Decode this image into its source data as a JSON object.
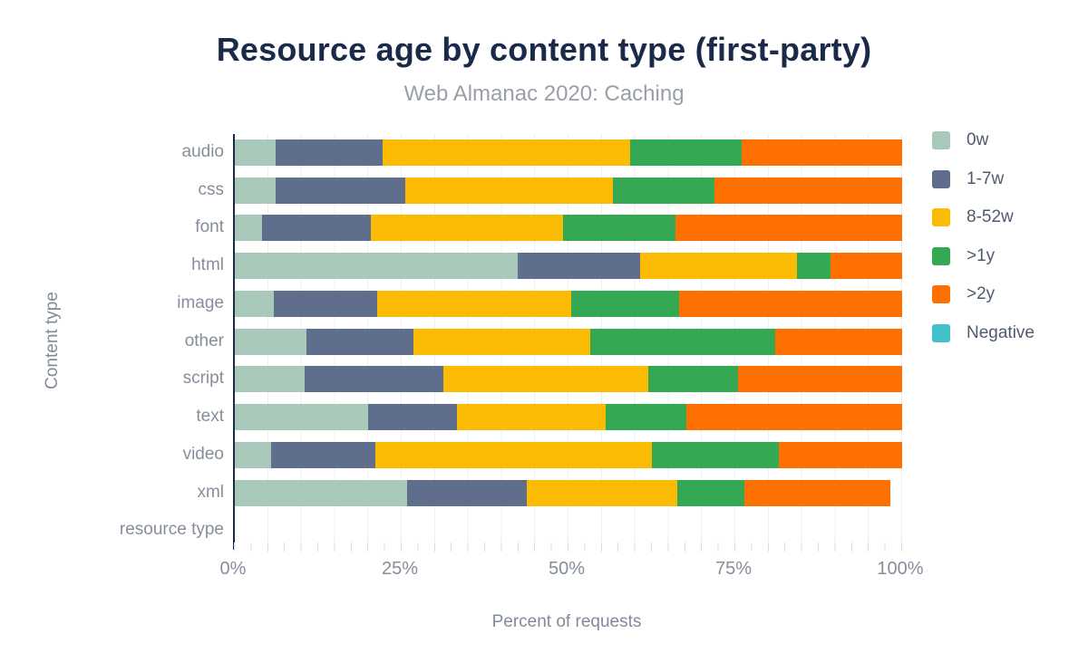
{
  "header": {
    "title": "Resource age by content type (first-party)",
    "subtitle": "Web Almanac 2020: Caching"
  },
  "colors": {
    "title": "#1b2a49",
    "subtitle": "#9aa0a6",
    "axis_line": "#1b2a49",
    "gridline": "#edeff2",
    "tick_marks": "#d9dde3",
    "axis_text": "#868e9c",
    "legend_text": "#4f5b6c"
  },
  "chart_data": {
    "type": "bar",
    "orientation": "horizontal",
    "stacked": true,
    "title": "Resource age by content type (first-party)",
    "subtitle": "Web Almanac 2020: Caching",
    "xlabel": "Percent of requests",
    "ylabel": "Content type",
    "xlim": [
      0,
      100
    ],
    "x_ticks": [
      "0%",
      "25%",
      "50%",
      "75%",
      "100%"
    ],
    "grid": "vertical gridlines every 5%, minor ticks every 2.5%",
    "legend_position": "right",
    "categories": [
      "audio",
      "css",
      "font",
      "html",
      "image",
      "other",
      "script",
      "text",
      "video",
      "xml",
      "resource type"
    ],
    "series": [
      {
        "name": "0w",
        "color": "#a8c9ba",
        "values": [
          6.1,
          6.1,
          4.1,
          42.4,
          5.9,
          10.7,
          10.5,
          20.0,
          5.4,
          25.8,
          0
        ]
      },
      {
        "name": "1-7w",
        "color": "#5f6e8c",
        "values": [
          16.1,
          19.4,
          16.3,
          18.3,
          15.4,
          16.1,
          20.7,
          13.3,
          15.7,
          18.0,
          0
        ]
      },
      {
        "name": "8-52w",
        "color": "#fabb02",
        "values": [
          37.0,
          31.1,
          28.8,
          23.5,
          29.1,
          26.4,
          30.7,
          22.3,
          41.4,
          22.5,
          0
        ]
      },
      {
        "name": ">1y",
        "color": "#35a854",
        "values": [
          16.7,
          15.3,
          16.8,
          5.1,
          16.2,
          27.8,
          13.5,
          12.0,
          19.0,
          10.1,
          0
        ]
      },
      {
        "name": ">2y",
        "color": "#ff7002",
        "values": [
          24.1,
          28.1,
          34.0,
          10.7,
          33.4,
          19.0,
          24.6,
          32.4,
          18.5,
          21.8,
          0
        ]
      },
      {
        "name": "Negative",
        "color": "#43c1ca",
        "values": [
          0,
          0,
          0,
          0,
          0,
          0,
          0,
          0,
          0,
          0,
          0
        ]
      }
    ]
  }
}
